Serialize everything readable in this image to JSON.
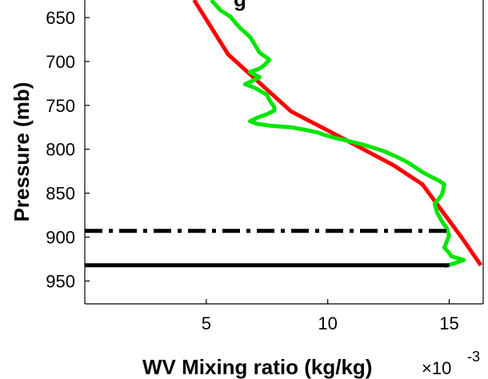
{
  "chart_data": {
    "type": "line",
    "title_fragment": "g",
    "xlabel": "WV Mixing ratio (kg/kg)",
    "x_multiplier": "×10",
    "x_exponent": "-3",
    "ylabel": "Pressure (mb)",
    "xlim": [
      0,
      16.4
    ],
    "ylim": [
      630,
      976
    ],
    "y_reversed": true,
    "grid": false,
    "xticks": [
      5,
      10,
      15
    ],
    "xtick_labels": [
      "5",
      "10",
      "15"
    ],
    "yticks": [
      650,
      700,
      750,
      800,
      850,
      900,
      950
    ],
    "ytick_labels": [
      "650",
      "700",
      "750",
      "800",
      "850",
      "900",
      "950"
    ],
    "series": [
      {
        "color": "#ff0000",
        "style": "solid",
        "x": [
          4.5,
          5.9,
          8.5,
          10.1,
          12.7,
          13.9,
          14.7,
          15.5,
          16.3
        ],
        "y": [
          630,
          692,
          757,
          780,
          818,
          840,
          870,
          900,
          932
        ]
      },
      {
        "color": "#00e600",
        "style": "solid",
        "x": [
          5.2,
          5.4,
          5.6,
          6.0,
          6.2,
          6.4,
          6.8,
          7.0,
          7.2,
          7.6,
          7.4,
          7.2,
          6.8,
          7.2,
          6.9,
          6.6,
          7.0,
          7.5,
          7.6,
          7.8,
          7.8,
          7.5,
          7.1,
          6.8,
          7.1,
          7.6,
          8.5,
          9.1,
          9.6,
          9.9,
          10.3,
          11.5,
          12.3,
          12.8,
          13.3,
          13.9,
          14.3,
          14.6,
          14.8,
          14.7,
          14.4,
          14.5,
          14.7,
          14.9,
          15.0,
          14.9,
          14.8,
          15.0,
          15.1,
          15.6,
          15.2,
          14.8
        ],
        "y": [
          630,
          636,
          642,
          649,
          656,
          662,
          672,
          681,
          690,
          698,
          704,
          708,
          712,
          718,
          722,
          726,
          730,
          738,
          744,
          752,
          756,
          760,
          764,
          768,
          771,
          773,
          775,
          778,
          781,
          784,
          787,
          795,
          802,
          808,
          815,
          826,
          832,
          836,
          840,
          852,
          862,
          872,
          882,
          890,
          898,
          905,
          912,
          918,
          922,
          926,
          930,
          933
        ]
      },
      {
        "color": "#000000",
        "style": "dashdot",
        "x": [
          0,
          15.0
        ],
        "y": [
          893,
          893
        ]
      },
      {
        "color": "#000000",
        "style": "solid",
        "x": [
          0,
          15.0
        ],
        "y": [
          932,
          932
        ]
      }
    ]
  }
}
